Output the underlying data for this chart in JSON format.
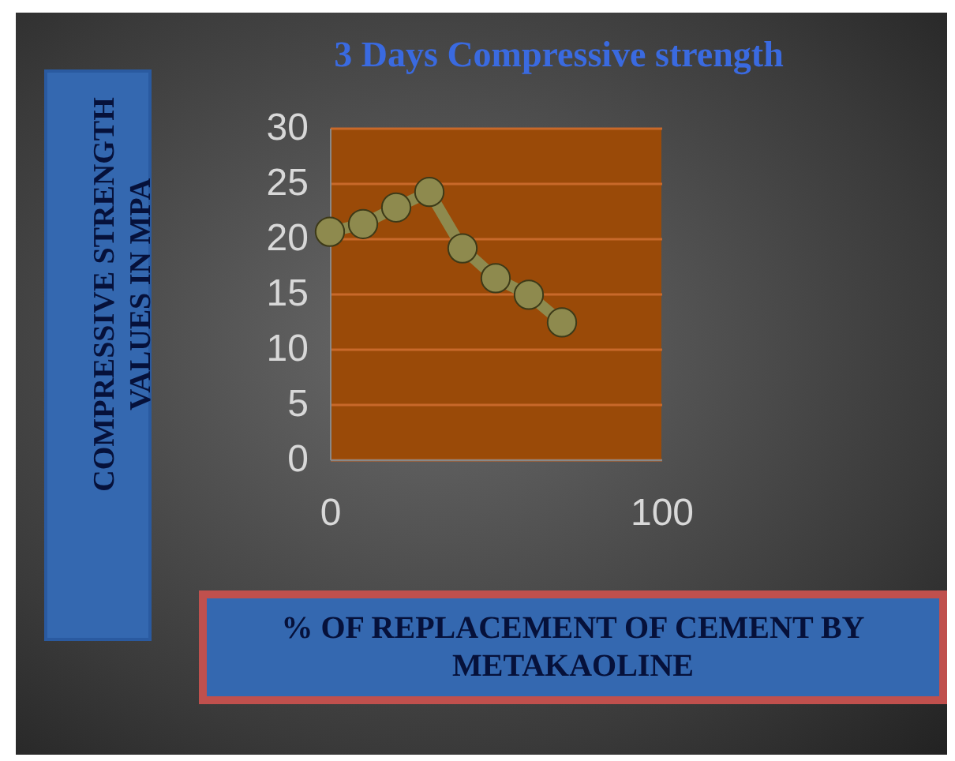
{
  "chart_data": {
    "type": "line",
    "title": "3 Days Compressive strength",
    "xlabel": "% OF REPLACEMENT OF CEMENT BY METAKAOLINE",
    "ylabel": "COMPRESSIVE STRENGTH VALUES IN MPA",
    "x": [
      0,
      10,
      20,
      30,
      40,
      50,
      60,
      70
    ],
    "series": [
      {
        "color": "#8e8a4e",
        "values": [
          20.6,
          21.3,
          22.8,
          24.2,
          19.1,
          16.4,
          14.9,
          12.4
        ]
      }
    ],
    "xlim": [
      0,
      100
    ],
    "xticks": [
      0,
      100
    ],
    "ylim": [
      0,
      30
    ],
    "yticks": [
      0,
      5,
      10,
      15,
      20,
      25,
      30
    ],
    "grid": "y",
    "marker": "circle",
    "line_style": "solid"
  }
}
